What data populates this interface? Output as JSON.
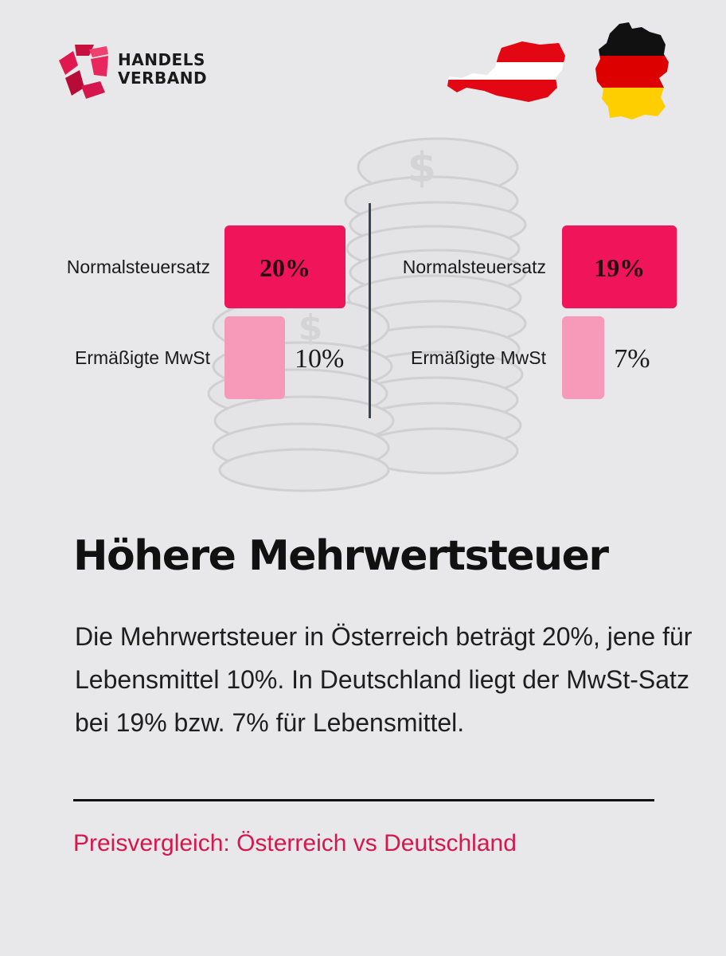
{
  "brand": {
    "line1": "HANDELS",
    "line2": "VERBAND",
    "color": "#d5174d"
  },
  "flags": {
    "left": "austria-flag-map",
    "right": "germany-flag-map"
  },
  "chart_data": {
    "type": "bar",
    "orientation": "horizontal",
    "unit": "%",
    "panels": [
      {
        "country": "Österreich",
        "categories": [
          "Normalsteuersatz",
          "Ermäßigte MwSt"
        ],
        "values": [
          20,
          10
        ],
        "labels": [
          "20%",
          "10%"
        ],
        "colors": [
          "#f0145a",
          "#f799b8"
        ]
      },
      {
        "country": "Deutschland",
        "categories": [
          "Normalsteuersatz",
          "Ermäßigte MwSt"
        ],
        "values": [
          19,
          7
        ],
        "labels": [
          "19%",
          "7%"
        ],
        "colors": [
          "#f0145a",
          "#f799b8"
        ]
      }
    ]
  },
  "headline": "Höhere Mehrwertsteuer",
  "body": "Die Mehrwertsteuer in Österreich beträgt 20%, jene für Lebensmittel 10%. In Deutschland liegt der MwSt-Satz bei 19% bzw. 7% für Lebensmittel.",
  "footer": "Preisvergleich: Österreich vs Deutschland"
}
